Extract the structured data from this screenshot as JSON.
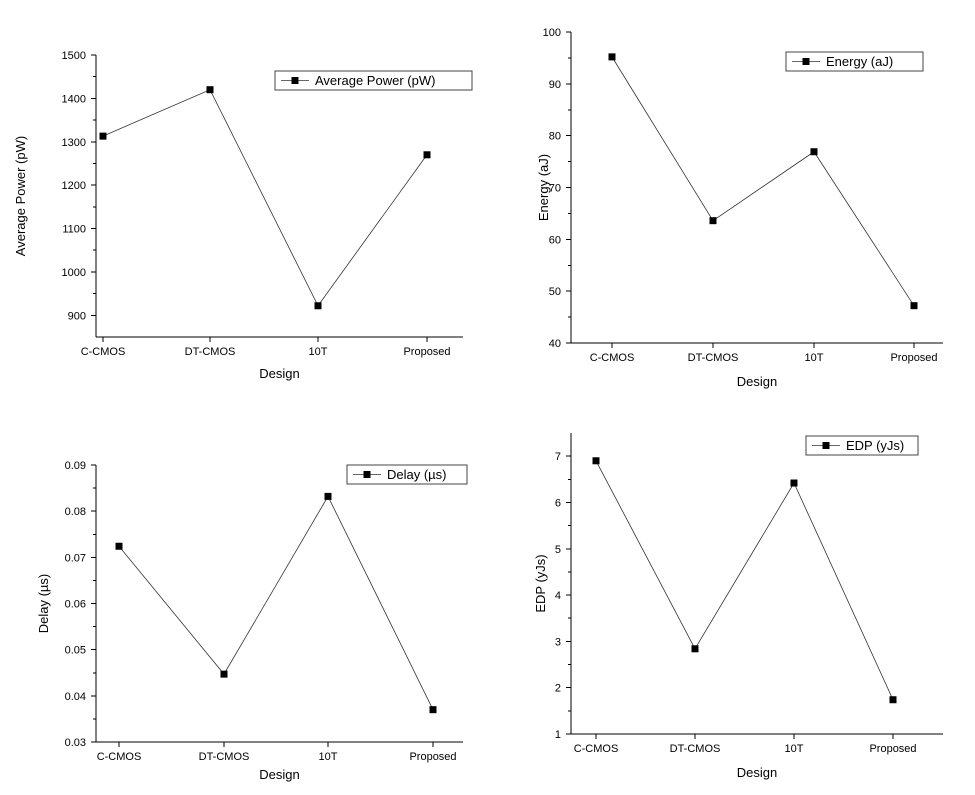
{
  "chart_data": [
    {
      "type": "line",
      "categories": [
        "C-CMOS",
        "DT-CMOS",
        "10T",
        "Proposed"
      ],
      "values": [
        1313,
        1420,
        922,
        1270
      ],
      "series": [
        {
          "name": "Average Power (pW)",
          "values": [
            1313,
            1420,
            922,
            1270
          ]
        }
      ],
      "xlabel": "Design",
      "ylabel": "Average Power (pW)",
      "ylim": [
        850,
        1500
      ],
      "yticks": [
        900,
        1000,
        1100,
        1200,
        1300,
        1400,
        1500
      ],
      "ytick_labels": [
        "900",
        "1000",
        "1100",
        "1200",
        "1300",
        "1400",
        "1500"
      ],
      "legend": "Average Power (pW)",
      "legend_position": "top-right"
    },
    {
      "type": "line",
      "categories": [
        "C-CMOS",
        "DT-CMOS",
        "10T",
        "Proposed"
      ],
      "values": [
        95.2,
        63.6,
        76.9,
        47.2
      ],
      "series": [
        {
          "name": "Energy (aJ)",
          "values": [
            95.2,
            63.6,
            76.9,
            47.2
          ]
        }
      ],
      "xlabel": "Design",
      "ylabel": "Energy (aJ)",
      "ylim": [
        40,
        100
      ],
      "yticks": [
        40,
        50,
        60,
        70,
        80,
        90,
        100
      ],
      "ytick_labels": [
        "40",
        "50",
        "60",
        "70",
        "80",
        "90",
        "100"
      ],
      "legend": "Energy (aJ)",
      "legend_position": "top-right"
    },
    {
      "type": "line",
      "categories": [
        "C-CMOS",
        "DT-CMOS",
        "10T",
        "Proposed"
      ],
      "values": [
        0.0724,
        0.0447,
        0.0832,
        0.037
      ],
      "series": [
        {
          "name": "Delay (µs)",
          "values": [
            0.0724,
            0.0447,
            0.0832,
            0.037
          ]
        }
      ],
      "xlabel": "Design",
      "ylabel": "Delay (µs)",
      "ylim": [
        0.03,
        0.09
      ],
      "yticks": [
        0.03,
        0.04,
        0.05,
        0.06,
        0.07,
        0.08,
        0.09
      ],
      "ytick_labels": [
        "0.03",
        "0.04",
        "0.05",
        "0.06",
        "0.07",
        "0.08",
        "0.09"
      ],
      "legend": "Delay (µs)",
      "legend_position": "top-right"
    },
    {
      "type": "line",
      "categories": [
        "C-CMOS",
        "DT-CMOS",
        "10T",
        "Proposed"
      ],
      "values": [
        6.9,
        2.84,
        6.42,
        1.74
      ],
      "series": [
        {
          "name": "EDP (yJs)",
          "values": [
            6.9,
            2.84,
            6.42,
            1.74
          ]
        }
      ],
      "xlabel": "Design",
      "ylabel": "EDP (yJs)",
      "ylim": [
        1,
        7.5
      ],
      "yticks": [
        1,
        2,
        3,
        4,
        5,
        6,
        7
      ],
      "ytick_labels": [
        "1",
        "2",
        "3",
        "4",
        "5",
        "6",
        "7"
      ],
      "legend": "EDP (yJs)",
      "legend_position": "top-right"
    }
  ]
}
